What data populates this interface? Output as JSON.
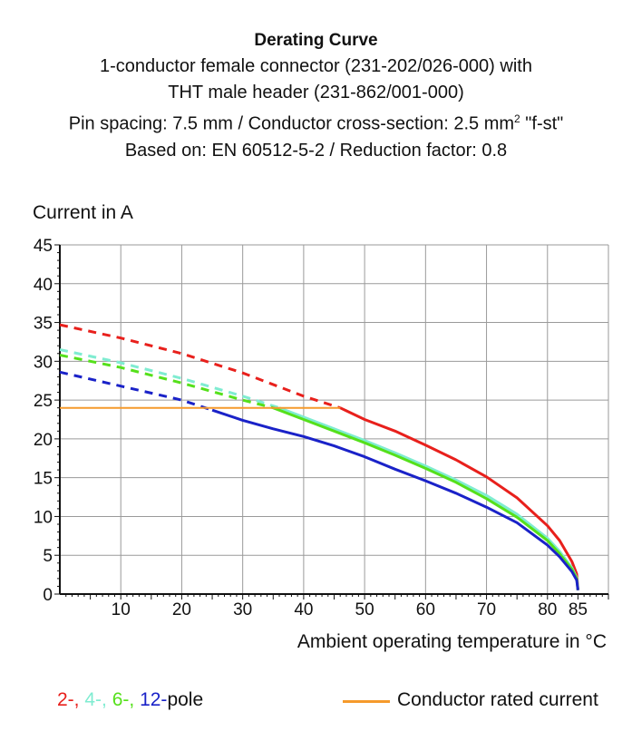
{
  "chart_data": {
    "type": "line",
    "title": "Derating Curve",
    "subtitle": [
      "1-conductor female connector (231-202/026-000) with",
      "THT male header (231-862/001-000)",
      "Pin spacing: 7.5 mm / Conductor cross-section: 2.5 mm",
      "2",
      " \"f-st\"",
      "Based on: EN 60512-5-2 / Reduction factor: 0.8"
    ],
    "ylabel": "Current in A",
    "xlabel": "Ambient operating temperature in °C",
    "xlim": [
      0,
      90
    ],
    "ylim": [
      0,
      45
    ],
    "x_ticks": [
      "10",
      "20",
      "30",
      "40",
      "50",
      "60",
      "70",
      "80",
      "85"
    ],
    "x_tick_values": [
      10,
      20,
      30,
      40,
      50,
      60,
      70,
      80,
      85
    ],
    "y_ticks": [
      "0",
      "5",
      "10",
      "15",
      "20",
      "25",
      "30",
      "35",
      "40",
      "45"
    ],
    "y_tick_values": [
      0,
      5,
      10,
      15,
      20,
      25,
      30,
      35,
      40,
      45
    ],
    "grid": true,
    "series": [
      {
        "key": "2-pole",
        "color": "#e8201c",
        "dashed": {
          "x": [
            0,
            10,
            20,
            30,
            40,
            46
          ],
          "y": [
            34.7,
            33.0,
            31.0,
            28.5,
            25.5,
            24.0
          ]
        },
        "solid": {
          "x": [
            46,
            50,
            55,
            60,
            65,
            70,
            75,
            80,
            82,
            84,
            84.8,
            85
          ],
          "y": [
            24.0,
            22.5,
            21.0,
            19.2,
            17.3,
            15.1,
            12.4,
            8.8,
            6.9,
            4.2,
            2.6,
            0.5
          ]
        }
      },
      {
        "key": "4-pole",
        "color": "#7fecd1",
        "dashed": {
          "x": [
            0,
            10,
            20,
            30,
            36
          ],
          "y": [
            31.5,
            29.8,
            27.8,
            25.5,
            24.0
          ]
        },
        "solid": {
          "x": [
            36,
            40,
            45,
            50,
            55,
            60,
            65,
            70,
            75,
            80,
            82,
            84,
            84.8,
            85
          ],
          "y": [
            24.0,
            22.8,
            21.3,
            19.8,
            18.2,
            16.5,
            14.7,
            12.7,
            10.3,
            7.2,
            5.5,
            3.4,
            2.1,
            0.5
          ]
        }
      },
      {
        "key": "6-pole",
        "color": "#55e01b",
        "dashed": {
          "x": [
            0,
            10,
            20,
            30,
            35
          ],
          "y": [
            30.8,
            29.2,
            27.2,
            25.0,
            24.0
          ]
        },
        "solid": {
          "x": [
            35,
            40,
            45,
            50,
            55,
            60,
            65,
            70,
            75,
            80,
            82,
            84,
            84.8,
            85
          ],
          "y": [
            24.0,
            22.5,
            21.0,
            19.5,
            17.9,
            16.2,
            14.4,
            12.3,
            9.9,
            6.9,
            5.2,
            3.2,
            2.0,
            0.5
          ]
        }
      },
      {
        "key": "12-pole",
        "color": "#1a22c8",
        "dashed": {
          "x": [
            0,
            10,
            20,
            25
          ],
          "y": [
            28.6,
            26.8,
            25.0,
            23.7
          ]
        },
        "solid": {
          "x": [
            25,
            30,
            35,
            40,
            45,
            50,
            55,
            60,
            65,
            70,
            75,
            80,
            82,
            84,
            84.8,
            85
          ],
          "y": [
            23.7,
            22.4,
            21.3,
            20.3,
            19.1,
            17.7,
            16.1,
            14.6,
            13.0,
            11.2,
            9.2,
            6.3,
            4.8,
            2.9,
            1.8,
            0.5
          ]
        }
      },
      {
        "key": "rated-current",
        "color": "#f59a2c",
        "solid": {
          "x": [
            0,
            46
          ],
          "y": [
            24.0,
            24.0
          ]
        }
      }
    ],
    "legend": {
      "placement": "bottom",
      "pole_items": [
        {
          "text": "2-,",
          "color": "#e8201c"
        },
        {
          "text": "4-,",
          "color": "#7fecd1"
        },
        {
          "text": "6-,",
          "color": "#55e01b"
        },
        {
          "text": "12-",
          "color": "#1a22c8"
        },
        {
          "text": "pole",
          "color": "#111111"
        }
      ],
      "rated_label": "Conductor rated current",
      "rated_color": "#f59a2c"
    }
  }
}
